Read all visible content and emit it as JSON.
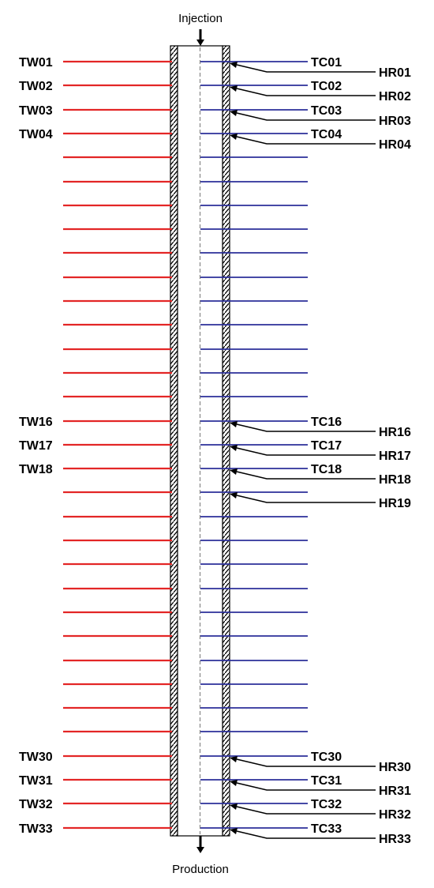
{
  "inlet_label": "Injection",
  "outlet_label": "Production",
  "colors": {
    "wall_probe": "#e32626",
    "center_probe": "#2b2f9a",
    "heater": "#000000"
  },
  "rows": [
    {
      "tw": "TW01",
      "tc": "TC01",
      "hr": "HR01"
    },
    {
      "tw": "TW02",
      "tc": "TC02",
      "hr": "HR02"
    },
    {
      "tw": "TW03",
      "tc": "TC03",
      "hr": "HR03"
    },
    {
      "tw": "TW04",
      "tc": "TC04",
      "hr": "HR04"
    },
    {
      "tw": "",
      "tc": "",
      "hr": ""
    },
    {
      "tw": "",
      "tc": "",
      "hr": ""
    },
    {
      "tw": "",
      "tc": "",
      "hr": ""
    },
    {
      "tw": "",
      "tc": "",
      "hr": ""
    },
    {
      "tw": "",
      "tc": "",
      "hr": ""
    },
    {
      "tw": "",
      "tc": "",
      "hr": ""
    },
    {
      "tw": "",
      "tc": "",
      "hr": ""
    },
    {
      "tw": "",
      "tc": "",
      "hr": ""
    },
    {
      "tw": "",
      "tc": "",
      "hr": ""
    },
    {
      "tw": "",
      "tc": "",
      "hr": ""
    },
    {
      "tw": "",
      "tc": "",
      "hr": ""
    },
    {
      "tw": "TW16",
      "tc": "TC16",
      "hr": "HR16"
    },
    {
      "tw": "TW17",
      "tc": "TC17",
      "hr": "HR17"
    },
    {
      "tw": "TW18",
      "tc": "TC18",
      "hr": "HR18"
    },
    {
      "tw": "",
      "tc": "",
      "hr": "HR19"
    },
    {
      "tw": "",
      "tc": "",
      "hr": ""
    },
    {
      "tw": "",
      "tc": "",
      "hr": ""
    },
    {
      "tw": "",
      "tc": "",
      "hr": ""
    },
    {
      "tw": "",
      "tc": "",
      "hr": ""
    },
    {
      "tw": "",
      "tc": "",
      "hr": ""
    },
    {
      "tw": "",
      "tc": "",
      "hr": ""
    },
    {
      "tw": "",
      "tc": "",
      "hr": ""
    },
    {
      "tw": "",
      "tc": "",
      "hr": ""
    },
    {
      "tw": "",
      "tc": "",
      "hr": ""
    },
    {
      "tw": "",
      "tc": "",
      "hr": ""
    },
    {
      "tw": "TW30",
      "tc": "TC30",
      "hr": "HR30"
    },
    {
      "tw": "TW31",
      "tc": "TC31",
      "hr": "HR31"
    },
    {
      "tw": "TW32",
      "tc": "TC32",
      "hr": "HR32"
    },
    {
      "tw": "TW33",
      "tc": "TC33",
      "hr": "HR33"
    }
  ]
}
